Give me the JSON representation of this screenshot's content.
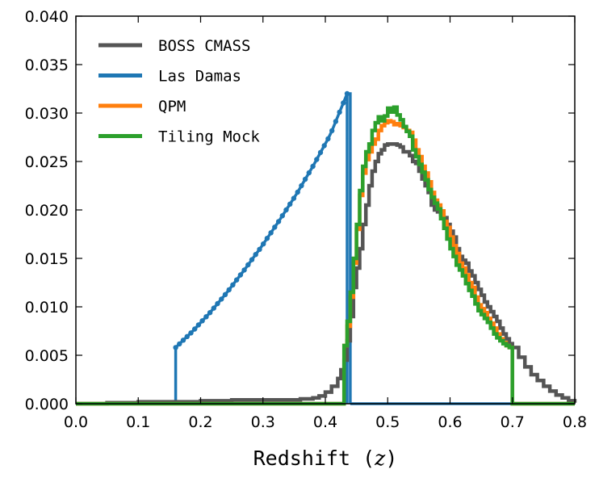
{
  "chart_data": {
    "type": "line",
    "xlabel_prefix": "Redshift (",
    "xlabel_var": "z",
    "xlabel_suffix": ")",
    "ylabel": "",
    "xlim": [
      0.0,
      0.8
    ],
    "ylim": [
      0.0,
      0.04
    ],
    "x_ticks": [
      "0.0",
      "0.1",
      "0.2",
      "0.3",
      "0.4",
      "0.5",
      "0.6",
      "0.7",
      "0.8"
    ],
    "y_ticks": [
      "0.000",
      "0.005",
      "0.010",
      "0.015",
      "0.020",
      "0.025",
      "0.030",
      "0.035",
      "0.040"
    ],
    "grid": false,
    "legend_position": "top-left",
    "series": [
      {
        "name": "BOSS CMASS",
        "color": "#555555",
        "style": "step",
        "x": [
          0.0,
          0.05,
          0.1,
          0.15,
          0.2,
          0.25,
          0.3,
          0.33,
          0.36,
          0.38,
          0.39,
          0.4,
          0.41,
          0.42,
          0.425,
          0.43,
          0.435,
          0.44,
          0.445,
          0.45,
          0.455,
          0.46,
          0.465,
          0.47,
          0.475,
          0.48,
          0.485,
          0.49,
          0.495,
          0.5,
          0.505,
          0.51,
          0.515,
          0.52,
          0.525,
          0.53,
          0.535,
          0.54,
          0.545,
          0.55,
          0.555,
          0.56,
          0.565,
          0.57,
          0.575,
          0.58,
          0.585,
          0.59,
          0.595,
          0.6,
          0.605,
          0.61,
          0.615,
          0.62,
          0.625,
          0.63,
          0.635,
          0.64,
          0.645,
          0.65,
          0.655,
          0.66,
          0.665,
          0.67,
          0.675,
          0.68,
          0.685,
          0.69,
          0.695,
          0.7,
          0.71,
          0.72,
          0.73,
          0.74,
          0.75,
          0.76,
          0.77,
          0.78,
          0.79,
          0.8
        ],
        "y": [
          0.0,
          0.0001,
          0.0002,
          0.0002,
          0.0003,
          0.0004,
          0.0004,
          0.0004,
          0.0005,
          0.0006,
          0.0008,
          0.0012,
          0.0018,
          0.0026,
          0.0035,
          0.0045,
          0.0065,
          0.009,
          0.012,
          0.014,
          0.016,
          0.0185,
          0.0205,
          0.0225,
          0.024,
          0.025,
          0.0258,
          0.0262,
          0.0267,
          0.0268,
          0.0268,
          0.0268,
          0.0267,
          0.0265,
          0.026,
          0.026,
          0.0256,
          0.025,
          0.0248,
          0.024,
          0.0232,
          0.0225,
          0.0218,
          0.0205,
          0.02,
          0.0198,
          0.0195,
          0.0192,
          0.0185,
          0.0178,
          0.0172,
          0.016,
          0.0152,
          0.0148,
          0.0145,
          0.0137,
          0.0132,
          0.0125,
          0.0118,
          0.0112,
          0.0105,
          0.01,
          0.0095,
          0.009,
          0.0085,
          0.0078,
          0.0072,
          0.0067,
          0.0062,
          0.0058,
          0.0048,
          0.0038,
          0.003,
          0.0024,
          0.0018,
          0.0013,
          0.0009,
          0.0006,
          0.0003,
          0.0001
        ]
      },
      {
        "name": "Las Damas",
        "color": "#1f77b4",
        "style": "markers",
        "x_start": 0.16,
        "x_end": 0.435,
        "y_start": 0.0058,
        "y_end": 0.032,
        "y_shape": [
          0.0058,
          0.0075,
          0.0094,
          0.0115,
          0.0138,
          0.0162,
          0.0188,
          0.0215,
          0.0245,
          0.0277,
          0.032
        ],
        "drop_x": 0.44
      },
      {
        "name": "QPM",
        "color": "#ff7f0e",
        "style": "step",
        "x": [
          0.0,
          0.43,
          0.435,
          0.44,
          0.445,
          0.45,
          0.455,
          0.46,
          0.465,
          0.47,
          0.475,
          0.48,
          0.485,
          0.49,
          0.495,
          0.5,
          0.505,
          0.51,
          0.515,
          0.52,
          0.525,
          0.53,
          0.535,
          0.54,
          0.545,
          0.55,
          0.555,
          0.56,
          0.565,
          0.57,
          0.575,
          0.58,
          0.585,
          0.59,
          0.595,
          0.6,
          0.605,
          0.61,
          0.615,
          0.62,
          0.625,
          0.63,
          0.635,
          0.64,
          0.645,
          0.65,
          0.655,
          0.66,
          0.665,
          0.67,
          0.675,
          0.68,
          0.685,
          0.69,
          0.695,
          0.7,
          0.8
        ],
        "y": [
          0.0,
          0.006,
          0.008,
          0.011,
          0.0145,
          0.018,
          0.0215,
          0.0238,
          0.0252,
          0.026,
          0.0268,
          0.0273,
          0.0282,
          0.0287,
          0.029,
          0.0292,
          0.0291,
          0.0288,
          0.0289,
          0.0287,
          0.0285,
          0.0282,
          0.028,
          0.0272,
          0.0262,
          0.0255,
          0.0245,
          0.0238,
          0.0229,
          0.0218,
          0.021,
          0.0205,
          0.0199,
          0.0188,
          0.0182,
          0.0172,
          0.0163,
          0.0155,
          0.0145,
          0.014,
          0.0133,
          0.0125,
          0.012,
          0.011,
          0.0102,
          0.0098,
          0.0094,
          0.0088,
          0.0083,
          0.0078,
          0.0072,
          0.0067,
          0.0063,
          0.006,
          0.0058,
          0.0,
          0.0
        ]
      },
      {
        "name": "Tiling Mock",
        "color": "#2ca02c",
        "style": "step",
        "x": [
          0.0,
          0.43,
          0.435,
          0.44,
          0.445,
          0.45,
          0.455,
          0.46,
          0.465,
          0.47,
          0.475,
          0.48,
          0.485,
          0.49,
          0.495,
          0.5,
          0.505,
          0.51,
          0.515,
          0.52,
          0.525,
          0.53,
          0.535,
          0.54,
          0.545,
          0.55,
          0.555,
          0.56,
          0.565,
          0.57,
          0.575,
          0.58,
          0.585,
          0.59,
          0.595,
          0.6,
          0.605,
          0.61,
          0.615,
          0.62,
          0.625,
          0.63,
          0.635,
          0.64,
          0.645,
          0.65,
          0.655,
          0.66,
          0.665,
          0.67,
          0.675,
          0.68,
          0.685,
          0.69,
          0.695,
          0.7,
          0.8
        ],
        "y": [
          0.0,
          0.006,
          0.0085,
          0.0115,
          0.015,
          0.0185,
          0.022,
          0.0245,
          0.026,
          0.0268,
          0.0282,
          0.029,
          0.0296,
          0.0292,
          0.0297,
          0.0305,
          0.0301,
          0.0306,
          0.0298,
          0.0293,
          0.0286,
          0.0281,
          0.0276,
          0.0262,
          0.0255,
          0.0247,
          0.0239,
          0.0231,
          0.0221,
          0.0213,
          0.0207,
          0.0201,
          0.0191,
          0.0181,
          0.017,
          0.016,
          0.0152,
          0.0143,
          0.0138,
          0.0132,
          0.0124,
          0.0117,
          0.0111,
          0.0103,
          0.0096,
          0.0092,
          0.0088,
          0.0084,
          0.0078,
          0.0072,
          0.0068,
          0.0065,
          0.0062,
          0.006,
          0.0058,
          0.0,
          0.0
        ]
      }
    ]
  }
}
